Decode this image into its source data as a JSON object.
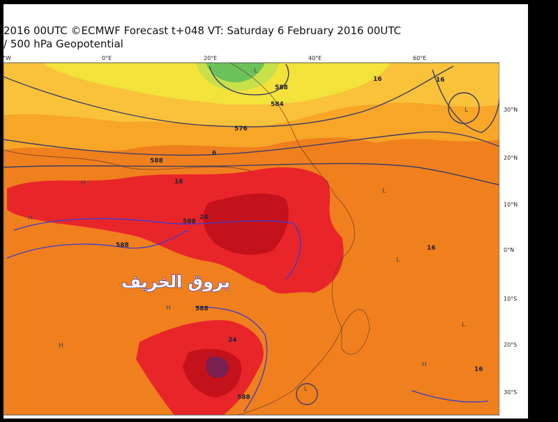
{
  "header": {
    "line1": "2016 00UTC ©ECMWF Forecast t+048 VT: Saturday 6 February 2016 00UTC",
    "line2": "/ 500 hPa Geopotential"
  },
  "longitude_labels": [
    "°W",
    "0°E",
    "20°E",
    "40°E",
    "60°E"
  ],
  "latitude_labels": [
    "30°N",
    "20°N",
    "10°N",
    "0°N",
    "10°S",
    "20°S",
    "30°S"
  ],
  "contour_labels": [
    "576",
    "584",
    "588",
    "16",
    "6",
    "16",
    "588",
    "16",
    "588",
    "24",
    "588",
    "588",
    "24",
    "16",
    "16",
    "588"
  ],
  "pressure_labels": [
    "L",
    "H",
    "H",
    "H",
    "L",
    "L",
    "H",
    "L",
    "L",
    "H",
    "L"
  ],
  "watermark": "بروق الخريف"
}
